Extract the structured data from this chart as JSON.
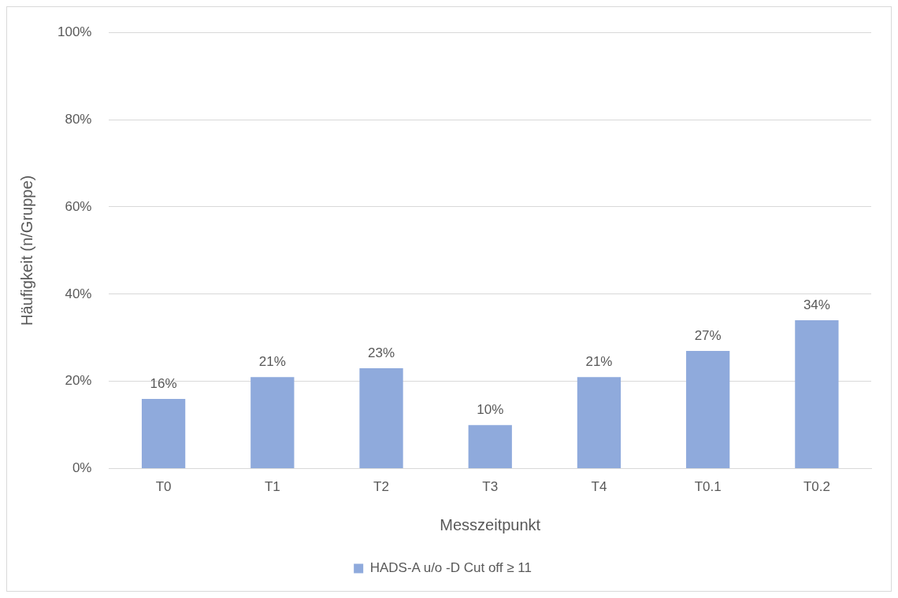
{
  "chart_data": {
    "type": "bar",
    "xlabel": "Messzeitpunkt",
    "ylabel": "Häufigkeit (n/Gruppe)",
    "categories": [
      "T0",
      "T1",
      "T2",
      "T3",
      "T4",
      "T0.1",
      "T0.2"
    ],
    "series": [
      {
        "name": "HADS-A u/o -D Cut off ≥ 11",
        "color": "#8faadc",
        "values": [
          16,
          21,
          23,
          10,
          21,
          27,
          34
        ],
        "value_labels": [
          "16%",
          "21%",
          "23%",
          "10%",
          "21%",
          "27%",
          "34%"
        ]
      }
    ],
    "ylim": [
      0,
      100
    ],
    "yticks": [
      {
        "value": 0,
        "label": "0%"
      },
      {
        "value": 20,
        "label": "20%"
      },
      {
        "value": 40,
        "label": "40%"
      },
      {
        "value": 60,
        "label": "60%"
      },
      {
        "value": 80,
        "label": "80%"
      },
      {
        "value": 100,
        "label": "100%"
      }
    ],
    "grid": "y",
    "legend": "bottom"
  }
}
